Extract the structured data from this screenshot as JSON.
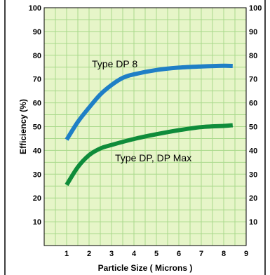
{
  "chart_data": {
    "type": "line",
    "title": "",
    "xlabel": "Particle Size  ( Microns )",
    "ylabel": "Efficiency (%)",
    "xlim": [
      0,
      9
    ],
    "ylim": [
      0,
      100
    ],
    "x_ticks": [
      1,
      2,
      3,
      4,
      5,
      6,
      7,
      8,
      9
    ],
    "y_ticks": [
      10,
      20,
      30,
      40,
      50,
      60,
      70,
      80,
      90,
      100
    ],
    "y_ticks_right": [
      10,
      20,
      30,
      40,
      50,
      60,
      70,
      80,
      90,
      100
    ],
    "grid": true,
    "plot_background": "#e6f5c8",
    "grid_color": "#a9d98b",
    "series": [
      {
        "name": "Type DP 8",
        "color": "#1f7fc6",
        "x": [
          1,
          1.5,
          2,
          2.5,
          3,
          3.5,
          4,
          5,
          6,
          7,
          8,
          8.4
        ],
        "y": [
          44.5,
          52,
          58,
          63.5,
          67.5,
          70.5,
          72,
          73.8,
          74.8,
          75.3,
          75.6,
          75.5
        ]
      },
      {
        "name": "Type DP, DP Max",
        "color": "#0f8c3a",
        "x": [
          1,
          1.5,
          2,
          2.5,
          3,
          4,
          5,
          6,
          7,
          8,
          8.4
        ],
        "y": [
          25.5,
          33,
          38,
          40.8,
          42.3,
          44.8,
          46.8,
          48.5,
          49.8,
          50.3,
          50.6
        ]
      }
    ]
  }
}
